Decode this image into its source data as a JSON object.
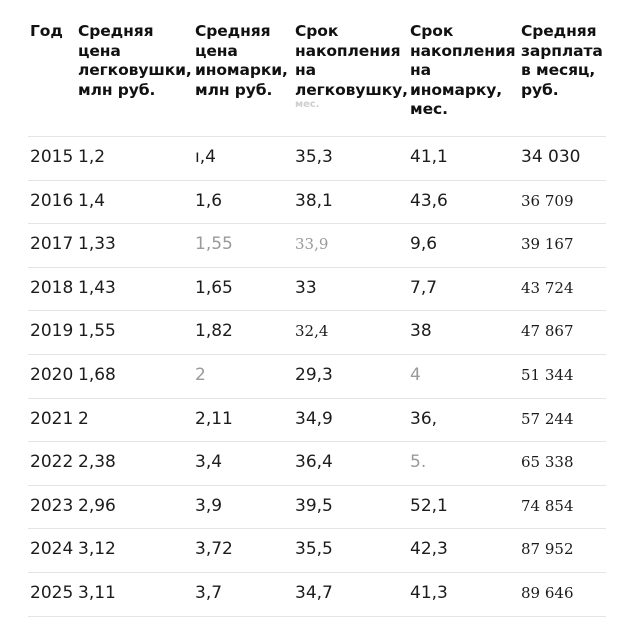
{
  "table": {
    "headers": [
      {
        "lines": [
          "Год"
        ]
      },
      {
        "lines": [
          "Средняя",
          "цена",
          "легковушки,",
          "млн руб."
        ]
      },
      {
        "lines": [
          "Средняя",
          "цена",
          "иномарки,",
          "млн руб."
        ]
      },
      {
        "lines": [
          "Срок",
          "накопления",
          "на",
          "легковушку,"
        ],
        "faded": "мес."
      },
      {
        "lines": [
          "Срок",
          "накопления",
          "на",
          "иномарку,",
          "мес."
        ]
      },
      {
        "lines": [
          "Средняя",
          "зарплата",
          "в месяц,",
          "руб."
        ]
      }
    ],
    "rows": [
      {
        "year": "2015",
        "price_car": "1,2",
        "price_foreign": "ı,4",
        "save_car": "35,3",
        "save_foreign": "41,1",
        "salary": "34 030"
      },
      {
        "year": "2016",
        "price_car": "1,4",
        "price_foreign": "1,6",
        "save_car": "38,1",
        "save_foreign": "43,6",
        "salary": "36 709"
      },
      {
        "year": "2017",
        "price_car": "1,33",
        "price_foreign": "1,55",
        "save_car": "33,9",
        "save_foreign": "9,6",
        "salary": "39 167"
      },
      {
        "year": "2018",
        "price_car": "1,43",
        "price_foreign": "1,65",
        "save_car": "33",
        "save_foreign": "7,7",
        "salary": "43 724"
      },
      {
        "year": "2019",
        "price_car": "1,55",
        "price_foreign": "1,82",
        "save_car": "32,4",
        "save_foreign": "38",
        "salary": "47 867"
      },
      {
        "year": "2020",
        "price_car": "1,68",
        "price_foreign": "2",
        "save_car": "29,3",
        "save_foreign": "4",
        "salary": "51 344"
      },
      {
        "year": "2021",
        "price_car": "2",
        "price_foreign": "2,11",
        "save_car": "34,9",
        "save_foreign": "36,",
        "salary": "57 244"
      },
      {
        "year": "2022",
        "price_car": "2,38",
        "price_foreign": "3,4",
        "save_car": "36,4",
        "save_foreign": "5.",
        "salary": "65 338"
      },
      {
        "year": "2023",
        "price_car": "2,96",
        "price_foreign": "3,9",
        "save_car": "39,5",
        "save_foreign": "52,1",
        "salary": "74 854"
      },
      {
        "year": "2024",
        "price_car": "3,12",
        "price_foreign": "3,72",
        "save_car": "35,5",
        "save_foreign": "42,3",
        "salary": "87 952"
      },
      {
        "year": "2025",
        "price_car": "3,11",
        "price_foreign": "3,7",
        "save_car": "34,7",
        "save_foreign": "41,3",
        "salary": "89 646"
      }
    ]
  }
}
